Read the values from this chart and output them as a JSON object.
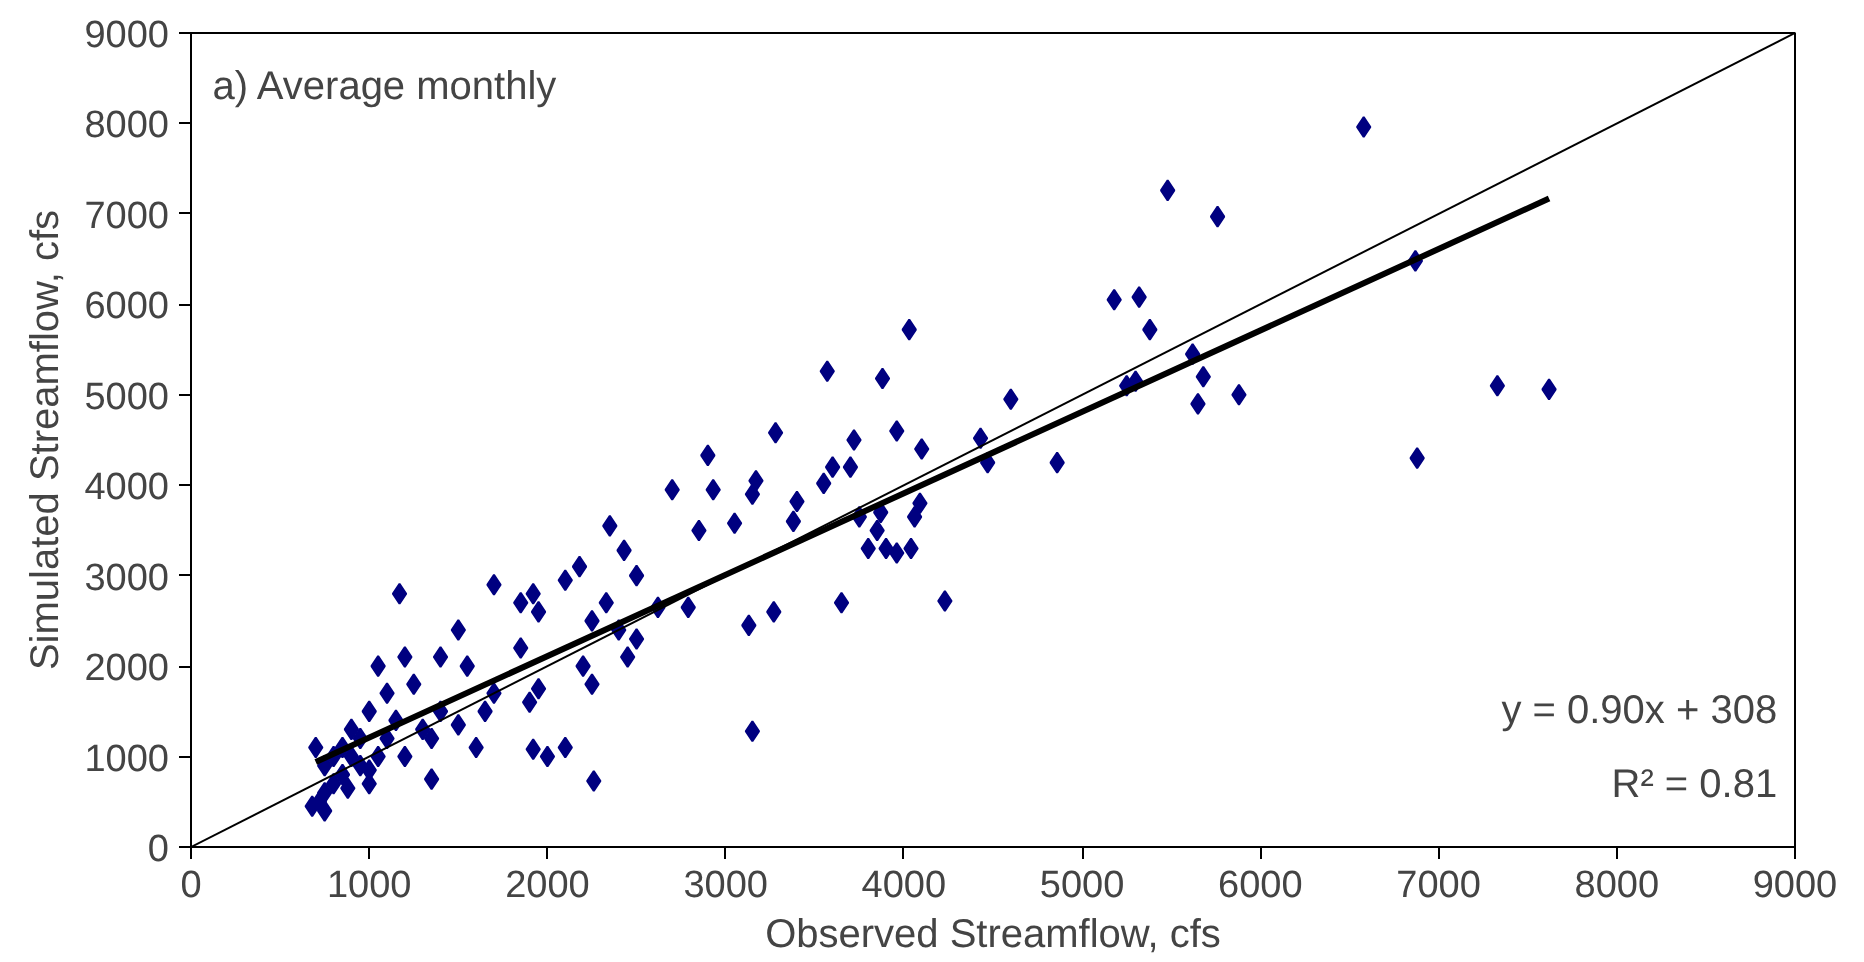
{
  "chart_data": {
    "type": "scatter",
    "xlabel": "Observed Streamflow, cfs",
    "ylabel": "Simulated Streamflow, cfs",
    "annotations": [
      "a) Average monthly",
      "y = 0.90x + 308",
      "R² = 0.81"
    ],
    "xlim": [
      0,
      9000
    ],
    "ylim": [
      0,
      9000
    ],
    "xticks": [
      0,
      1000,
      2000,
      3000,
      4000,
      5000,
      6000,
      7000,
      8000,
      9000
    ],
    "yticks": [
      0,
      1000,
      2000,
      3000,
      4000,
      5000,
      6000,
      7000,
      8000,
      9000
    ],
    "grid": false,
    "series": [
      {
        "marker": "diamond",
        "color": "#000080",
        "x": [
          6580,
          5480,
          5760,
          6870,
          5180,
          5320,
          5380,
          5620,
          5680,
          5650,
          5880,
          5300,
          5250,
          6880,
          7330,
          7620,
          4860,
          4600,
          4430,
          4470,
          4230,
          4030,
          3960,
          3880,
          4100,
          4090,
          4060,
          3960,
          4040,
          3570,
          3280,
          2900,
          2930,
          3170,
          3050,
          3150,
          3400,
          3380,
          3550,
          3600,
          3700,
          3750,
          3720,
          3850,
          3870,
          3800,
          3900,
          3650,
          3270,
          3130,
          3150,
          2850,
          2700,
          2790,
          2620,
          2350,
          2430,
          2500,
          2400,
          2500,
          2450,
          2330,
          2180,
          2100,
          2250,
          2200,
          2250,
          2260,
          2100,
          2000,
          1920,
          1900,
          1950,
          1850,
          1920,
          1950,
          1700,
          1850,
          1650,
          1550,
          1500,
          1500,
          1400,
          1350,
          1350,
          1170,
          1250,
          1200,
          1100,
          1050,
          1000,
          950,
          900,
          850,
          800,
          750,
          720,
          700,
          680,
          750,
          800,
          850,
          900,
          950,
          1000,
          1050,
          1100,
          1150,
          1200,
          1300,
          1400,
          1600,
          1700,
          750,
          880,
          1000
        ],
        "values": [
          7960,
          7260,
          6970,
          6480,
          6050,
          6080,
          5720,
          5450,
          5200,
          4900,
          5000,
          5150,
          5100,
          4300,
          5100,
          5060,
          4250,
          4950,
          4520,
          4250,
          2720,
          5720,
          4600,
          5180,
          4400,
          3800,
          3650,
          3250,
          3300,
          5260,
          4580,
          4330,
          3950,
          4050,
          3580,
          3900,
          3820,
          3600,
          4020,
          4200,
          4200,
          3650,
          4500,
          3500,
          3700,
          3300,
          3300,
          2700,
          2600,
          2450,
          1280,
          3500,
          3950,
          2650,
          2650,
          3550,
          3280,
          3000,
          2400,
          2300,
          2100,
          2700,
          3100,
          2950,
          2500,
          2000,
          1800,
          730,
          1100,
          1000,
          1080,
          1600,
          1750,
          2700,
          2800,
          2600,
          2900,
          2200,
          1500,
          2000,
          2400,
          1350,
          2100,
          1200,
          750,
          2800,
          1800,
          2100,
          1700,
          2000,
          1500,
          1200,
          1000,
          800,
          700,
          600,
          500,
          1100,
          450,
          900,
          1000,
          1100,
          1300,
          900,
          700,
          1000,
          1200,
          1400,
          1000,
          1300,
          1500,
          1100,
          1700,
          400,
          650,
          850
        ]
      },
      {
        "type": "line",
        "color": "#000000",
        "x": [
          700,
          7620
        ],
        "values": [
          940,
          7170
        ],
        "line_style": "solid"
      },
      {
        "type": "line",
        "color": "#000000",
        "x": [
          0,
          9000
        ],
        "values": [
          0,
          9000
        ],
        "line_style": "solid"
      }
    ]
  }
}
